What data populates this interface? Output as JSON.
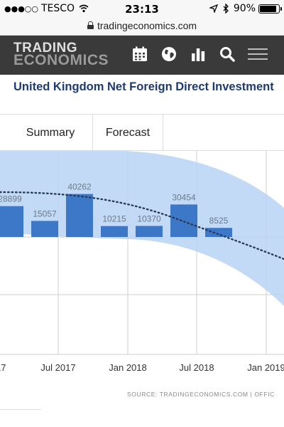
{
  "status_bar": {
    "signal_dots": "●●●○○",
    "carrier": "TESCO",
    "time": "23:13",
    "battery_text": "90%",
    "battery_level": 0.9
  },
  "address_bar": {
    "url": "tradingeconomics.com"
  },
  "header": {
    "logo_line1": "TRADING",
    "logo_line2": "ECONOMICS",
    "icons": [
      "calendar-icon",
      "globe-icon",
      "bar-chart-icon",
      "search-icon",
      "menu-icon"
    ]
  },
  "page": {
    "title": "United Kingdom Net Foreign Direct Investment"
  },
  "tabs": [
    {
      "label": "Summary"
    },
    {
      "label": "Forecast"
    }
  ],
  "chart_data": {
    "type": "bar",
    "title": "",
    "xlabel": "",
    "ylabel": "",
    "categories": [
      "2017-Q1",
      "2017-Q2",
      "2017-Q3",
      "2017-Q4",
      "2018-Q1",
      "2018-Q2",
      "2018-Q3"
    ],
    "values": [
      28899,
      15057,
      40262,
      10215,
      10370,
      30454,
      8525
    ],
    "value_labels": [
      "28899",
      "15057",
      "40262",
      "10215",
      "10370",
      "30454",
      "8525"
    ],
    "x_tick_labels": [
      "17",
      "Jul 2017",
      "Jan 2018",
      "Jul 2018",
      "Jan 2019"
    ],
    "forecast_trend": "dotted declining line",
    "confidence_band": "light blue shaded area",
    "grid": true,
    "colors": {
      "bar": "#3d78c8",
      "band": "#b8d4f4",
      "trend": "#2a3a5a",
      "value_label": "#6a7a8a",
      "grid": "#cfcfcf"
    },
    "source": "SOURCE: TRADINGECONOMICS.COM | OFFIC"
  }
}
